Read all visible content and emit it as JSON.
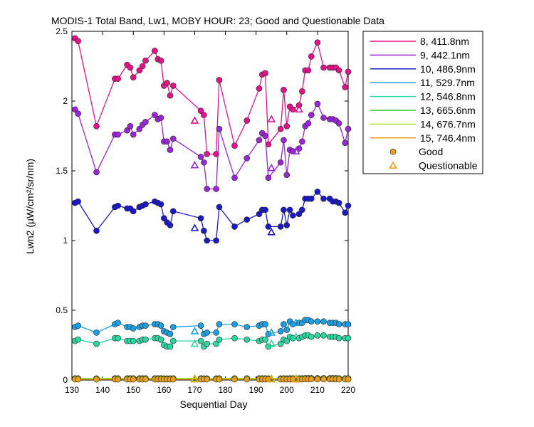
{
  "chart_data": {
    "type": "line",
    "title": "MODIS-1 Total Band, Lw1, MOBY HOUR: 23;  Good and Questionable Data",
    "xlabel": "Sequential Day",
    "ylabel": "Lwn2 (µW/cm²/sr/nm)",
    "xlim": [
      130,
      220
    ],
    "ylim": [
      0,
      2.5
    ],
    "xticks": [
      130,
      140,
      150,
      160,
      170,
      180,
      190,
      200,
      210,
      220
    ],
    "yticks": [
      0,
      0.5,
      1,
      1.5,
      2,
      2.5
    ],
    "xtick_labels": [
      "130",
      "140",
      "150",
      "160",
      "170",
      "180",
      "190",
      "200",
      "210",
      "220"
    ],
    "ytick_labels": [
      "0",
      "0.5",
      "1",
      "1.5",
      "2",
      "2.5"
    ],
    "grid": false,
    "legend_position": "outside-right",
    "x": [
      131,
      132,
      138,
      144,
      145,
      148,
      149,
      150,
      152,
      153,
      154,
      157,
      158,
      159,
      160,
      161,
      162,
      163,
      172,
      173,
      174,
      177,
      178,
      183,
      187,
      191,
      192,
      193,
      194,
      198,
      199,
      200,
      201,
      202,
      204,
      205,
      206,
      207,
      208,
      210,
      212,
      214,
      215,
      216,
      217,
      219,
      220
    ],
    "series": [
      {
        "name": "8, 411.8nm",
        "color": "#e6128c",
        "values": [
          2.45,
          2.43,
          1.82,
          2.16,
          2.16,
          2.26,
          2.24,
          2.17,
          2.22,
          2.25,
          2.29,
          2.36,
          2.3,
          2.29,
          2.11,
          2.13,
          2.04,
          2.11,
          1.93,
          1.9,
          1.62,
          1.62,
          2.15,
          1.68,
          1.86,
          2.09,
          2.19,
          2.2,
          1.69,
          1.8,
          2.08,
          1.82,
          1.96,
          1.94,
          1.97,
          2.07,
          2.22,
          2.22,
          2.32,
          2.42,
          2.24,
          2.24,
          2.24,
          2.24,
          2.22,
          2.1,
          2.21
        ],
        "questionable": [
          {
            "x": 170,
            "y": 1.86
          },
          {
            "x": 195,
            "y": 1.87
          },
          {
            "x": 204,
            "y": 1.94
          }
        ]
      },
      {
        "name": "9, 442.1nm",
        "color": "#9b25d8",
        "values": [
          1.94,
          1.91,
          1.49,
          1.76,
          1.76,
          1.79,
          1.82,
          1.76,
          1.8,
          1.83,
          1.85,
          1.9,
          1.87,
          1.88,
          1.71,
          1.71,
          1.65,
          1.73,
          1.6,
          1.56,
          1.37,
          1.37,
          1.8,
          1.45,
          1.59,
          1.72,
          1.77,
          1.75,
          1.45,
          1.56,
          1.72,
          1.47,
          1.65,
          1.64,
          1.66,
          1.71,
          1.82,
          1.84,
          1.9,
          1.98,
          1.88,
          1.87,
          1.87,
          1.86,
          1.84,
          1.7,
          1.8
        ],
        "questionable": [
          {
            "x": 170,
            "y": 1.54
          },
          {
            "x": 195,
            "y": 1.52
          },
          {
            "x": 203,
            "y": 1.64
          }
        ]
      },
      {
        "name": "10, 486.9nm",
        "color": "#1b19c8",
        "values": [
          1.27,
          1.28,
          1.07,
          1.24,
          1.25,
          1.23,
          1.23,
          1.21,
          1.24,
          1.25,
          1.26,
          1.28,
          1.27,
          1.26,
          1.16,
          1.13,
          1.11,
          1.21,
          1.16,
          1.07,
          1.0,
          1.0,
          1.24,
          1.1,
          1.15,
          1.19,
          1.22,
          1.22,
          1.1,
          1.1,
          1.22,
          1.11,
          1.22,
          1.18,
          1.19,
          1.22,
          1.3,
          1.3,
          1.3,
          1.35,
          1.3,
          1.3,
          1.28,
          1.28,
          1.27,
          1.2,
          1.25
        ],
        "questionable": [
          {
            "x": 170,
            "y": 1.09
          },
          {
            "x": 195,
            "y": 1.06
          }
        ]
      },
      {
        "name": "11, 529.7nm",
        "color": "#1aa0e6",
        "values": [
          0.38,
          0.39,
          0.34,
          0.4,
          0.41,
          0.38,
          0.38,
          0.37,
          0.38,
          0.39,
          0.39,
          0.4,
          0.4,
          0.39,
          0.35,
          0.34,
          0.33,
          0.38,
          0.39,
          0.33,
          0.34,
          0.34,
          0.4,
          0.4,
          0.38,
          0.39,
          0.4,
          0.4,
          0.33,
          0.35,
          0.4,
          0.36,
          0.42,
          0.4,
          0.41,
          0.41,
          0.43,
          0.43,
          0.42,
          0.42,
          0.42,
          0.41,
          0.41,
          0.41,
          0.4,
          0.4,
          0.4
        ],
        "questionable": [
          {
            "x": 170,
            "y": 0.35
          },
          {
            "x": 195,
            "y": 0.34
          },
          {
            "x": 203,
            "y": 0.41
          }
        ]
      },
      {
        "name": "12, 546.8nm",
        "color": "#2ad8a0",
        "values": [
          0.28,
          0.29,
          0.26,
          0.3,
          0.3,
          0.28,
          0.28,
          0.28,
          0.28,
          0.29,
          0.29,
          0.3,
          0.3,
          0.29,
          0.25,
          0.24,
          0.24,
          0.28,
          0.28,
          0.24,
          0.26,
          0.26,
          0.29,
          0.3,
          0.29,
          0.28,
          0.29,
          0.29,
          0.24,
          0.26,
          0.29,
          0.28,
          0.31,
          0.3,
          0.3,
          0.31,
          0.32,
          0.32,
          0.31,
          0.32,
          0.32,
          0.31,
          0.31,
          0.31,
          0.3,
          0.3,
          0.3
        ],
        "questionable": [
          {
            "x": 170,
            "y": 0.26
          },
          {
            "x": 195,
            "y": 0.26
          },
          {
            "x": 203,
            "y": 0.31
          }
        ]
      },
      {
        "name": "13, 665.6nm",
        "color": "#2acc2a",
        "values": [
          0.012,
          0.012,
          0.011,
          0.012,
          0.012,
          0.012,
          0.012,
          0.012,
          0.012,
          0.012,
          0.012,
          0.012,
          0.012,
          0.012,
          0.011,
          0.011,
          0.011,
          0.012,
          0.012,
          0.011,
          0.011,
          0.011,
          0.012,
          0.012,
          0.012,
          0.012,
          0.012,
          0.012,
          0.011,
          0.011,
          0.012,
          0.011,
          0.012,
          0.012,
          0.012,
          0.012,
          0.013,
          0.013,
          0.013,
          0.013,
          0.013,
          0.013,
          0.013,
          0.013,
          0.012,
          0.012,
          0.012
        ],
        "questionable": [
          {
            "x": 170,
            "y": 0.011
          },
          {
            "x": 195,
            "y": 0.011
          },
          {
            "x": 203,
            "y": 0.012
          }
        ]
      },
      {
        "name": "14, 676.7nm",
        "color": "#a6e62a",
        "values": [
          0.011,
          0.011,
          0.01,
          0.011,
          0.011,
          0.011,
          0.011,
          0.011,
          0.011,
          0.011,
          0.011,
          0.011,
          0.011,
          0.011,
          0.01,
          0.01,
          0.01,
          0.011,
          0.011,
          0.01,
          0.01,
          0.01,
          0.011,
          0.011,
          0.011,
          0.011,
          0.011,
          0.011,
          0.01,
          0.01,
          0.011,
          0.01,
          0.011,
          0.011,
          0.011,
          0.011,
          0.012,
          0.012,
          0.012,
          0.012,
          0.012,
          0.012,
          0.012,
          0.012,
          0.011,
          0.011,
          0.011
        ],
        "questionable": [
          {
            "x": 170,
            "y": 0.01
          },
          {
            "x": 195,
            "y": 0.01
          },
          {
            "x": 203,
            "y": 0.011
          }
        ]
      },
      {
        "name": "15, 746.4nm",
        "color": "#e6a01a",
        "values": [
          0.005,
          0.005,
          0.005,
          0.005,
          0.005,
          0.005,
          0.005,
          0.005,
          0.005,
          0.005,
          0.005,
          0.005,
          0.005,
          0.005,
          0.005,
          0.005,
          0.005,
          0.005,
          0.005,
          0.005,
          0.005,
          0.005,
          0.005,
          0.005,
          0.005,
          0.005,
          0.005,
          0.005,
          0.005,
          0.005,
          0.005,
          0.005,
          0.005,
          0.005,
          0.005,
          0.005,
          0.006,
          0.006,
          0.006,
          0.006,
          0.006,
          0.006,
          0.006,
          0.006,
          0.005,
          0.005,
          0.005
        ],
        "questionable": [
          {
            "x": 170,
            "y": 0.005
          },
          {
            "x": 195,
            "y": 0.005
          },
          {
            "x": 203,
            "y": 0.005
          }
        ]
      }
    ],
    "legend_markers": [
      {
        "label": "Good",
        "marker": "circle",
        "color": "#e6a01a"
      },
      {
        "label": "Questionable",
        "marker": "triangle",
        "color": "#e6a01a"
      }
    ]
  }
}
